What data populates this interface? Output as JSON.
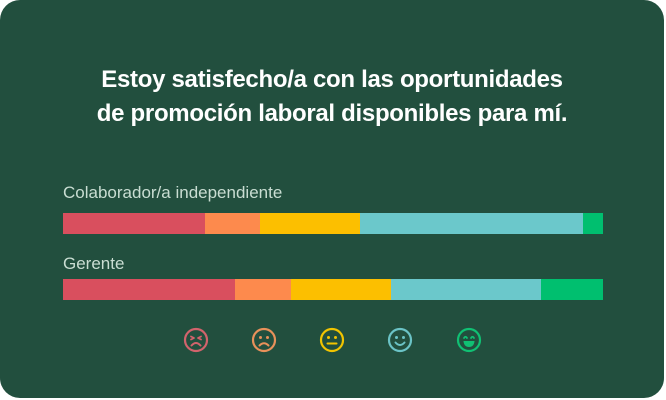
{
  "title_line1": "Estoy satisfecho/a con las oportunidades",
  "title_line2": "de promoción laboral disponibles para mí.",
  "colors": {
    "background": "#224f3e",
    "very_dissatisfied": "#d94f5e",
    "dissatisfied": "#fd8a4d",
    "neutral": "#fcbf00",
    "satisfied": "#6bc8cb",
    "very_satisfied": "#00bf6f"
  },
  "rows": [
    {
      "label": "Colaborador/a independiente"
    },
    {
      "label": "Gerente"
    }
  ],
  "legend": [
    {
      "icon": "very-dissatisfied-face-icon"
    },
    {
      "icon": "dissatisfied-face-icon"
    },
    {
      "icon": "neutral-face-icon"
    },
    {
      "icon": "satisfied-face-icon"
    },
    {
      "icon": "very-satisfied-face-icon"
    }
  ],
  "chart_data": {
    "type": "bar",
    "orientation": "horizontal",
    "stacked": true,
    "normalized": true,
    "title": "Estoy satisfecho/a con las oportunidades de promoción laboral disponibles para mí.",
    "categories": [
      "Colaborador/a independiente",
      "Gerente"
    ],
    "series": [
      {
        "name": "Muy insatisfecho",
        "color": "#d94f5e",
        "values": [
          26.3,
          31.9
        ]
      },
      {
        "name": "Insatisfecho",
        "color": "#fd8a4d",
        "values": [
          10.2,
          10.4
        ]
      },
      {
        "name": "Neutral",
        "color": "#fcbf00",
        "values": [
          18.5,
          18.5
        ]
      },
      {
        "name": "Satisfecho",
        "color": "#6bc8cb",
        "values": [
          41.3,
          27.8
        ]
      },
      {
        "name": "Muy satisfecho",
        "color": "#00bf6f",
        "values": [
          3.7,
          11.5
        ]
      }
    ],
    "xlabel": "",
    "ylabel": "",
    "xlim": [
      0,
      100
    ],
    "grid": false,
    "legend_position": "bottom",
    "legend_style": "emoji faces"
  }
}
